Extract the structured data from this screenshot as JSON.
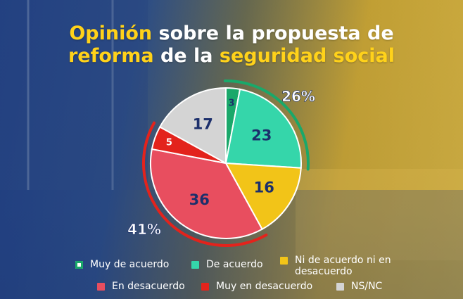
{
  "title": {
    "w1": "Opinión",
    "w2": " sobre la propuesta de",
    "w3": "reforma",
    "w4": " de la ",
    "w5": "seguridad social"
  },
  "colors": {
    "title_highlight": "#ffd21a",
    "muy_de_acuerdo": "#1aa86a",
    "de_acuerdo": "#35d6aa",
    "ni_ni": "#f2c418",
    "en_desacuerdo": "#e84e5f",
    "muy_en_desacuerdo": "#e3231c",
    "ns_nc": "#d4d4d4"
  },
  "chart_data": {
    "type": "pie",
    "categories": [
      "Muy de acuerdo",
      "De acuerdo",
      "Ni de acuerdo ni en desacuerdo",
      "En desacuerdo",
      "Muy en desacuerdo",
      "NS/NC"
    ],
    "values": [
      3,
      23,
      16,
      36,
      5,
      17
    ],
    "labels": [
      "3",
      "23",
      "16",
      "36",
      "5",
      "17"
    ],
    "annotations": [
      {
        "label": "26%",
        "group": [
          "Muy de acuerdo",
          "De acuerdo"
        ],
        "color": "#1aa86a"
      },
      {
        "label": "41%",
        "group": [
          "En desacuerdo",
          "Muy en desacuerdo"
        ],
        "color": "#e3231c"
      }
    ],
    "legend_position": "bottom"
  },
  "legend": [
    {
      "label": "Muy de acuerdo",
      "color": "#1aa86a",
      "hollow": true
    },
    {
      "label": "De acuerdo",
      "color": "#35d6aa"
    },
    {
      "label": "Ni de acuerdo ni en desacuerdo",
      "color": "#f2c418"
    },
    {
      "label": "En desacuerdo",
      "color": "#e84e5f"
    },
    {
      "label": "Muy en desacuerdo",
      "color": "#e3231c"
    },
    {
      "label": "NS/NC",
      "color": "#d4d4d4"
    }
  ]
}
